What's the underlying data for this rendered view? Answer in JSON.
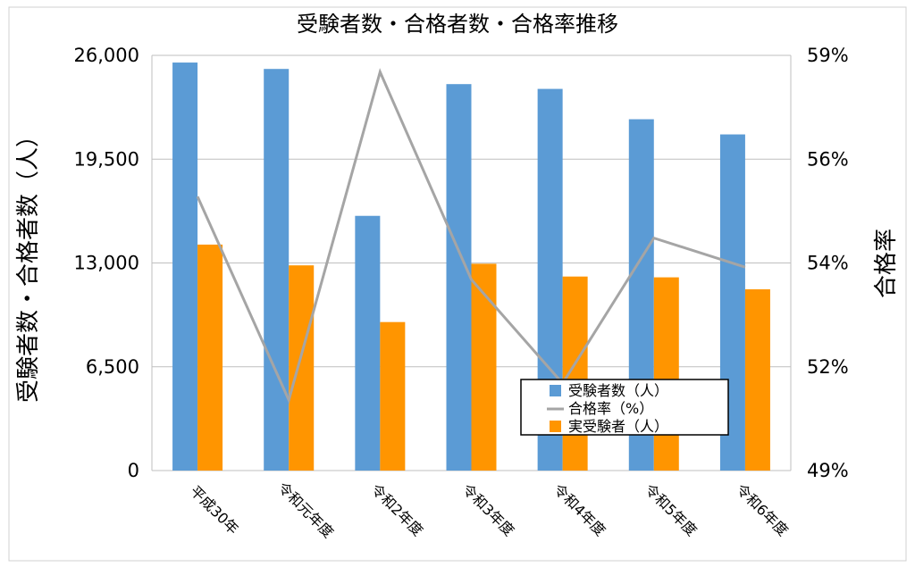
{
  "chart_data": {
    "type": "bar",
    "title": "受験者数・合格者数・合格率推移",
    "categories": [
      "平成30年",
      "令和元年度",
      "令和2年度",
      "令和3年度",
      "令和4年度",
      "令和5年度",
      "令和6年度"
    ],
    "series": [
      {
        "name": "受験者数（人）",
        "type": "bar",
        "axis": "left",
        "color": "#5b9bd5",
        "values": [
          25550,
          25150,
          15950,
          24200,
          23900,
          22000,
          21050
        ]
      },
      {
        "name": "合格率（%）",
        "type": "line",
        "axis": "right",
        "color": "#a5a5a5",
        "values": [
          55.6,
          50.7,
          58.6,
          53.6,
          51.1,
          54.6,
          53.9
        ]
      },
      {
        "name": "実受験者（人）",
        "type": "bar",
        "axis": "left",
        "color": "#ff9500",
        "values": [
          14150,
          12850,
          9300,
          12950,
          12150,
          12100,
          11350
        ]
      }
    ],
    "ylabel": "受験者数・合格者数（人）",
    "y2label": "合格率",
    "ylim": [
      0,
      26000
    ],
    "y2lim": [
      49,
      59
    ],
    "yticks": [
      "0",
      "6,500",
      "13,000",
      "19,500",
      "26,000"
    ],
    "y2ticks": [
      "49%",
      "52%",
      "54%",
      "56%",
      "59%"
    ],
    "grid": "horizontal",
    "legend": "lower-right"
  }
}
